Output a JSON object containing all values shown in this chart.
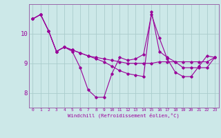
{
  "xlabel": "Windchill (Refroidissement éolien,°C)",
  "background_color": "#cce8e8",
  "grid_color": "#aacccc",
  "line_color": "#990099",
  "spine_color": "#9966aa",
  "xlim": [
    -0.5,
    23.5
  ],
  "ylim": [
    7.5,
    11.0
  ],
  "yticks": [
    8,
    9,
    10
  ],
  "xticks": [
    0,
    1,
    2,
    3,
    4,
    5,
    6,
    7,
    8,
    9,
    10,
    11,
    12,
    13,
    14,
    15,
    16,
    17,
    18,
    19,
    20,
    21,
    22,
    23
  ],
  "line1_x": [
    0,
    1,
    2,
    3,
    4,
    5,
    6,
    7,
    8,
    9,
    10,
    11,
    12,
    13,
    14,
    15,
    16,
    17,
    18,
    19,
    20,
    21,
    22,
    23
  ],
  "line1_y": [
    10.5,
    10.65,
    10.1,
    9.4,
    9.55,
    9.4,
    8.85,
    8.1,
    7.85,
    7.85,
    8.65,
    9.2,
    9.1,
    9.15,
    9.3,
    10.65,
    9.85,
    9.15,
    8.7,
    8.55,
    8.55,
    8.9,
    9.25,
    9.2
  ],
  "line2_x": [
    0,
    1,
    2,
    3,
    4,
    5,
    6,
    7,
    8,
    9,
    10,
    11,
    12,
    13,
    14,
    15,
    16,
    17,
    18,
    19,
    20,
    21,
    22,
    23
  ],
  "line2_y": [
    10.5,
    10.65,
    10.1,
    9.4,
    9.55,
    9.45,
    9.35,
    9.25,
    9.2,
    9.15,
    9.1,
    9.05,
    9.0,
    9.0,
    9.0,
    9.0,
    9.05,
    9.05,
    9.05,
    9.05,
    9.05,
    9.05,
    9.05,
    9.2
  ],
  "line3_x": [
    0,
    1,
    2,
    3,
    4,
    5,
    6,
    7,
    8,
    9,
    10,
    11,
    12,
    13,
    14,
    15,
    16,
    17,
    18,
    19,
    20,
    21,
    22,
    23
  ],
  "line3_y": [
    10.5,
    10.65,
    10.1,
    9.4,
    9.55,
    9.45,
    9.35,
    9.25,
    9.15,
    9.05,
    8.9,
    8.75,
    8.65,
    8.6,
    8.55,
    10.75,
    9.4,
    9.2,
    9.05,
    8.85,
    8.85,
    8.85,
    8.85,
    9.2
  ]
}
